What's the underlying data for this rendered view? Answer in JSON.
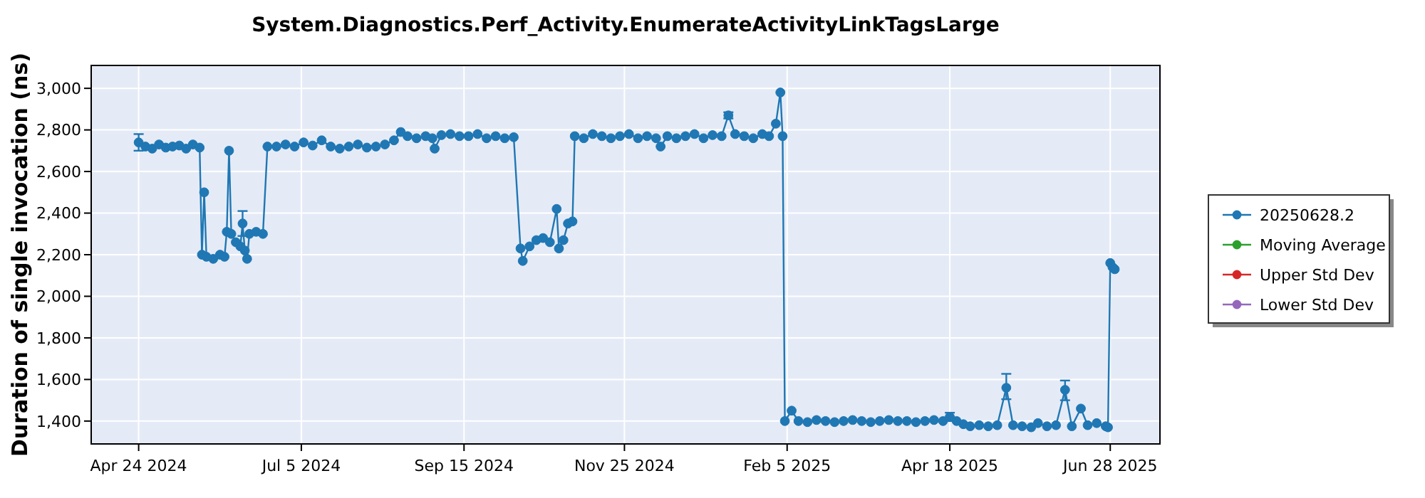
{
  "chart_data": {
    "type": "line",
    "title": "System.Diagnostics.Perf_Activity.EnumerateActivityLinkTagsLarge",
    "ylabel": "Duration of single invocation (ns)",
    "x": [
      "2024-04-24",
      "2024-04-27",
      "2024-04-30",
      "2024-05-03",
      "2024-05-06",
      "2024-05-09",
      "2024-05-12",
      "2024-05-15",
      "2024-05-18",
      "2024-05-21",
      "2024-05-22",
      "2024-05-23",
      "2024-05-24",
      "2024-05-27",
      "2024-05-30",
      "2024-06-01",
      "2024-06-02",
      "2024-06-03",
      "2024-06-04",
      "2024-06-06",
      "2024-06-08",
      "2024-06-09",
      "2024-06-10",
      "2024-06-11",
      "2024-06-12",
      "2024-06-15",
      "2024-06-18",
      "2024-06-20",
      "2024-06-24",
      "2024-06-28",
      "2024-07-02",
      "2024-07-06",
      "2024-07-10",
      "2024-07-14",
      "2024-07-18",
      "2024-07-22",
      "2024-07-26",
      "2024-07-30",
      "2024-08-03",
      "2024-08-07",
      "2024-08-11",
      "2024-08-15",
      "2024-08-18",
      "2024-08-21",
      "2024-08-25",
      "2024-08-29",
      "2024-09-01",
      "2024-09-02",
      "2024-09-05",
      "2024-09-09",
      "2024-09-13",
      "2024-09-17",
      "2024-09-21",
      "2024-09-25",
      "2024-09-29",
      "2024-10-03",
      "2024-10-07",
      "2024-10-10",
      "2024-10-11",
      "2024-10-14",
      "2024-10-17",
      "2024-10-20",
      "2024-10-23",
      "2024-10-26",
      "2024-10-27",
      "2024-10-29",
      "2024-10-31",
      "2024-11-02",
      "2024-11-03",
      "2024-11-07",
      "2024-11-11",
      "2024-11-15",
      "2024-11-19",
      "2024-11-23",
      "2024-11-27",
      "2024-12-01",
      "2024-12-05",
      "2024-12-09",
      "2024-12-11",
      "2024-12-14",
      "2024-12-18",
      "2024-12-22",
      "2024-12-26",
      "2024-12-30",
      "2025-01-03",
      "2025-01-07",
      "2025-01-10",
      "2025-01-13",
      "2025-01-17",
      "2025-01-21",
      "2025-01-25",
      "2025-01-28",
      "2025-01-31",
      "2025-02-02",
      "2025-02-03",
      "2025-02-04",
      "2025-02-07",
      "2025-02-10",
      "2025-02-14",
      "2025-02-18",
      "2025-02-22",
      "2025-02-26",
      "2025-03-02",
      "2025-03-06",
      "2025-03-10",
      "2025-03-14",
      "2025-03-18",
      "2025-03-22",
      "2025-03-26",
      "2025-03-30",
      "2025-04-03",
      "2025-04-07",
      "2025-04-11",
      "2025-04-15",
      "2025-04-18",
      "2025-04-21",
      "2025-04-24",
      "2025-04-27",
      "2025-05-01",
      "2025-05-05",
      "2025-05-09",
      "2025-05-13",
      "2025-05-16",
      "2025-05-20",
      "2025-05-24",
      "2025-05-27",
      "2025-05-31",
      "2025-06-04",
      "2025-06-08",
      "2025-06-11",
      "2025-06-15",
      "2025-06-18",
      "2025-06-22",
      "2025-06-26",
      "2025-06-27",
      "2025-06-28",
      "2025-06-29",
      "2025-06-30"
    ],
    "series": [
      {
        "name": "20250628.2",
        "color": "#1f77b4",
        "values": [
          2740,
          2720,
          2710,
          2730,
          2715,
          2720,
          2725,
          2710,
          2730,
          2715,
          2200,
          2500,
          2190,
          2180,
          2200,
          2190,
          2310,
          2700,
          2300,
          2260,
          2240,
          2350,
          2220,
          2180,
          2300,
          2310,
          2300,
          2720,
          2720,
          2730,
          2720,
          2740,
          2725,
          2750,
          2720,
          2710,
          2720,
          2730,
          2715,
          2720,
          2730,
          2750,
          2790,
          2770,
          2760,
          2770,
          2760,
          2710,
          2775,
          2780,
          2770,
          2770,
          2780,
          2760,
          2770,
          2760,
          2765,
          2230,
          2170,
          2240,
          2270,
          2280,
          2260,
          2420,
          2230,
          2270,
          2350,
          2360,
          2770,
          2760,
          2780,
          2770,
          2760,
          2770,
          2780,
          2760,
          2770,
          2760,
          2720,
          2770,
          2760,
          2770,
          2780,
          2760,
          2775,
          2770,
          2870,
          2780,
          2770,
          2760,
          2780,
          2770,
          2830,
          2980,
          2770,
          1400,
          1450,
          1400,
          1395,
          1405,
          1400,
          1395,
          1400,
          1405,
          1400,
          1395,
          1400,
          1405,
          1400,
          1400,
          1395,
          1400,
          1405,
          1400,
          1420,
          1400,
          1385,
          1375,
          1380,
          1375,
          1380,
          1560,
          1380,
          1375,
          1370,
          1390,
          1375,
          1380,
          1550,
          1375,
          1460,
          1380,
          1390,
          1375,
          1370,
          2160,
          2140,
          2130
        ],
        "errors": [
          40,
          null,
          null,
          null,
          null,
          null,
          null,
          null,
          null,
          null,
          null,
          null,
          null,
          null,
          null,
          null,
          null,
          null,
          null,
          null,
          null,
          60,
          null,
          null,
          null,
          null,
          null,
          null,
          null,
          null,
          null,
          null,
          null,
          null,
          null,
          null,
          null,
          null,
          null,
          null,
          null,
          null,
          null,
          null,
          null,
          null,
          null,
          null,
          null,
          null,
          null,
          null,
          null,
          null,
          null,
          null,
          null,
          null,
          null,
          null,
          null,
          null,
          null,
          null,
          null,
          null,
          null,
          null,
          null,
          null,
          null,
          null,
          null,
          null,
          null,
          null,
          null,
          null,
          null,
          null,
          null,
          null,
          null,
          null,
          null,
          null,
          15,
          null,
          null,
          null,
          null,
          null,
          null,
          null,
          null,
          null,
          null,
          null,
          null,
          null,
          null,
          null,
          null,
          null,
          null,
          null,
          null,
          null,
          null,
          null,
          null,
          null,
          null,
          null,
          20,
          null,
          null,
          null,
          null,
          null,
          null,
          [
            1505,
            1627
          ],
          null,
          null,
          null,
          null,
          null,
          null,
          [
            1500,
            1595
          ],
          null,
          null,
          null,
          null,
          null,
          null,
          null,
          null,
          null
        ]
      },
      {
        "name": "Moving Average",
        "color": "#2ca02c",
        "values": [
          null,
          null,
          null,
          null,
          null,
          null,
          null,
          null,
          null,
          null,
          null,
          null,
          null,
          null,
          null,
          null,
          null,
          null,
          null,
          null,
          null,
          null,
          null,
          null,
          null,
          null,
          null,
          null,
          null,
          null,
          null,
          null,
          null,
          null,
          null,
          null,
          null,
          null,
          null,
          null,
          null,
          null,
          null,
          null,
          null,
          null,
          null,
          null,
          null,
          null,
          null,
          null,
          null,
          null,
          null,
          null,
          null,
          null,
          null,
          null,
          null,
          null,
          null,
          null,
          null,
          null,
          null,
          null,
          null,
          null,
          null,
          null,
          null,
          null,
          null,
          null,
          null,
          null,
          null,
          null,
          null,
          null,
          null,
          null,
          null,
          null,
          null,
          null,
          null,
          null,
          null,
          null,
          null,
          null,
          null,
          null,
          null,
          null,
          null,
          null,
          null,
          null,
          null,
          null,
          null,
          null,
          null,
          null,
          null,
          null,
          null,
          null,
          null,
          null,
          null,
          null,
          null,
          null,
          null,
          null,
          null,
          null,
          null,
          null,
          null,
          null,
          null,
          null,
          null,
          null,
          null,
          null,
          null,
          null,
          null,
          null,
          null,
          null
        ]
      },
      {
        "name": "Upper Std Dev",
        "color": "#d62728",
        "values": [
          null,
          null,
          null,
          null,
          null,
          null,
          null,
          null,
          null,
          null,
          null,
          null,
          null,
          null,
          null,
          null,
          null,
          null,
          null,
          null,
          null,
          null,
          null,
          null,
          null,
          null,
          null,
          null,
          null,
          null,
          null,
          null,
          null,
          null,
          null,
          null,
          null,
          null,
          null,
          null,
          null,
          null,
          null,
          null,
          null,
          null,
          null,
          null,
          null,
          null,
          null,
          null,
          null,
          null,
          null,
          null,
          null,
          null,
          null,
          null,
          null,
          null,
          null,
          null,
          null,
          null,
          null,
          null,
          null,
          null,
          null,
          null,
          null,
          null,
          null,
          null,
          null,
          null,
          null,
          null,
          null,
          null,
          null,
          null,
          null,
          null,
          null,
          null,
          null,
          null,
          null,
          null,
          null,
          null,
          null,
          null,
          null,
          null,
          null,
          null,
          null,
          null,
          null,
          null,
          null,
          null,
          null,
          null,
          null,
          null,
          null,
          null,
          null,
          null,
          null,
          null,
          null,
          null,
          null,
          null,
          null,
          null,
          null,
          null,
          null,
          null,
          null,
          null,
          null,
          null,
          null,
          null,
          null,
          null,
          null,
          null,
          null,
          null
        ]
      },
      {
        "name": "Lower Std Dev",
        "color": "#9467bd",
        "values": [
          null,
          null,
          null,
          null,
          null,
          null,
          null,
          null,
          null,
          null,
          null,
          null,
          null,
          null,
          null,
          null,
          null,
          null,
          null,
          null,
          null,
          null,
          null,
          null,
          null,
          null,
          null,
          null,
          null,
          null,
          null,
          null,
          null,
          null,
          null,
          null,
          null,
          null,
          null,
          null,
          null,
          null,
          null,
          null,
          null,
          null,
          null,
          null,
          null,
          null,
          null,
          null,
          null,
          null,
          null,
          null,
          null,
          null,
          null,
          null,
          null,
          null,
          null,
          null,
          null,
          null,
          null,
          null,
          null,
          null,
          null,
          null,
          null,
          null,
          null,
          null,
          null,
          null,
          null,
          null,
          null,
          null,
          null,
          null,
          null,
          null,
          null,
          null,
          null,
          null,
          null,
          null,
          null,
          null,
          null,
          null,
          null,
          null,
          null,
          null,
          null,
          null,
          null,
          null,
          null,
          null,
          null,
          null,
          null,
          null,
          null,
          null,
          null,
          null,
          null,
          null,
          null,
          null,
          null,
          null,
          null,
          null,
          null,
          null,
          null,
          null,
          null,
          null,
          null,
          null,
          null,
          null,
          null,
          null,
          null,
          null,
          null,
          null
        ]
      }
    ],
    "xlim": [
      "2024-04-03",
      "2025-07-20"
    ],
    "xticks": [
      {
        "value": "2024-04-24",
        "label": "Apr 24 2024"
      },
      {
        "value": "2024-07-05",
        "label": "Jul 5 2024"
      },
      {
        "value": "2024-09-15",
        "label": "Sep 15 2024"
      },
      {
        "value": "2024-11-25",
        "label": "Nov 25 2024"
      },
      {
        "value": "2025-02-05",
        "label": "Feb 5 2025"
      },
      {
        "value": "2025-04-18",
        "label": "Apr 18 2025"
      },
      {
        "value": "2025-06-28",
        "label": "Jun 28 2025"
      }
    ],
    "ylim": [
      1290,
      3110
    ],
    "yticks": [
      {
        "value": 1400,
        "label": "1,400"
      },
      {
        "value": 1600,
        "label": "1,600"
      },
      {
        "value": 1800,
        "label": "1,800"
      },
      {
        "value": 2000,
        "label": "2,000"
      },
      {
        "value": 2200,
        "label": "2,200"
      },
      {
        "value": 2400,
        "label": "2,400"
      },
      {
        "value": 2600,
        "label": "2,600"
      },
      {
        "value": 2800,
        "label": "2,800"
      },
      {
        "value": 3000,
        "label": "3,000"
      }
    ],
    "grid": true,
    "legend": "right",
    "marker": "circle",
    "line_style": "solid"
  }
}
